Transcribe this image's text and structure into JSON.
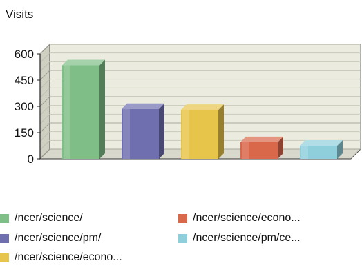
{
  "chart_data": {
    "type": "bar",
    "ylabel": "Visits",
    "ylim": [
      0,
      600
    ],
    "yticks": [
      0,
      150,
      300,
      450,
      600
    ],
    "grid": true,
    "legend_position": "bottom",
    "categories": [
      "/ncer/science/",
      "/ncer/science/pm/",
      "/ncer/science/econo...",
      "/ncer/science/econo...",
      "/ncer/science/pm/ce..."
    ],
    "values": [
      535,
      285,
      280,
      95,
      75
    ],
    "colors": [
      "#7fbf87",
      "#6f6fb0",
      "#e6c54a",
      "#d9674a",
      "#8fcfdc"
    ]
  }
}
